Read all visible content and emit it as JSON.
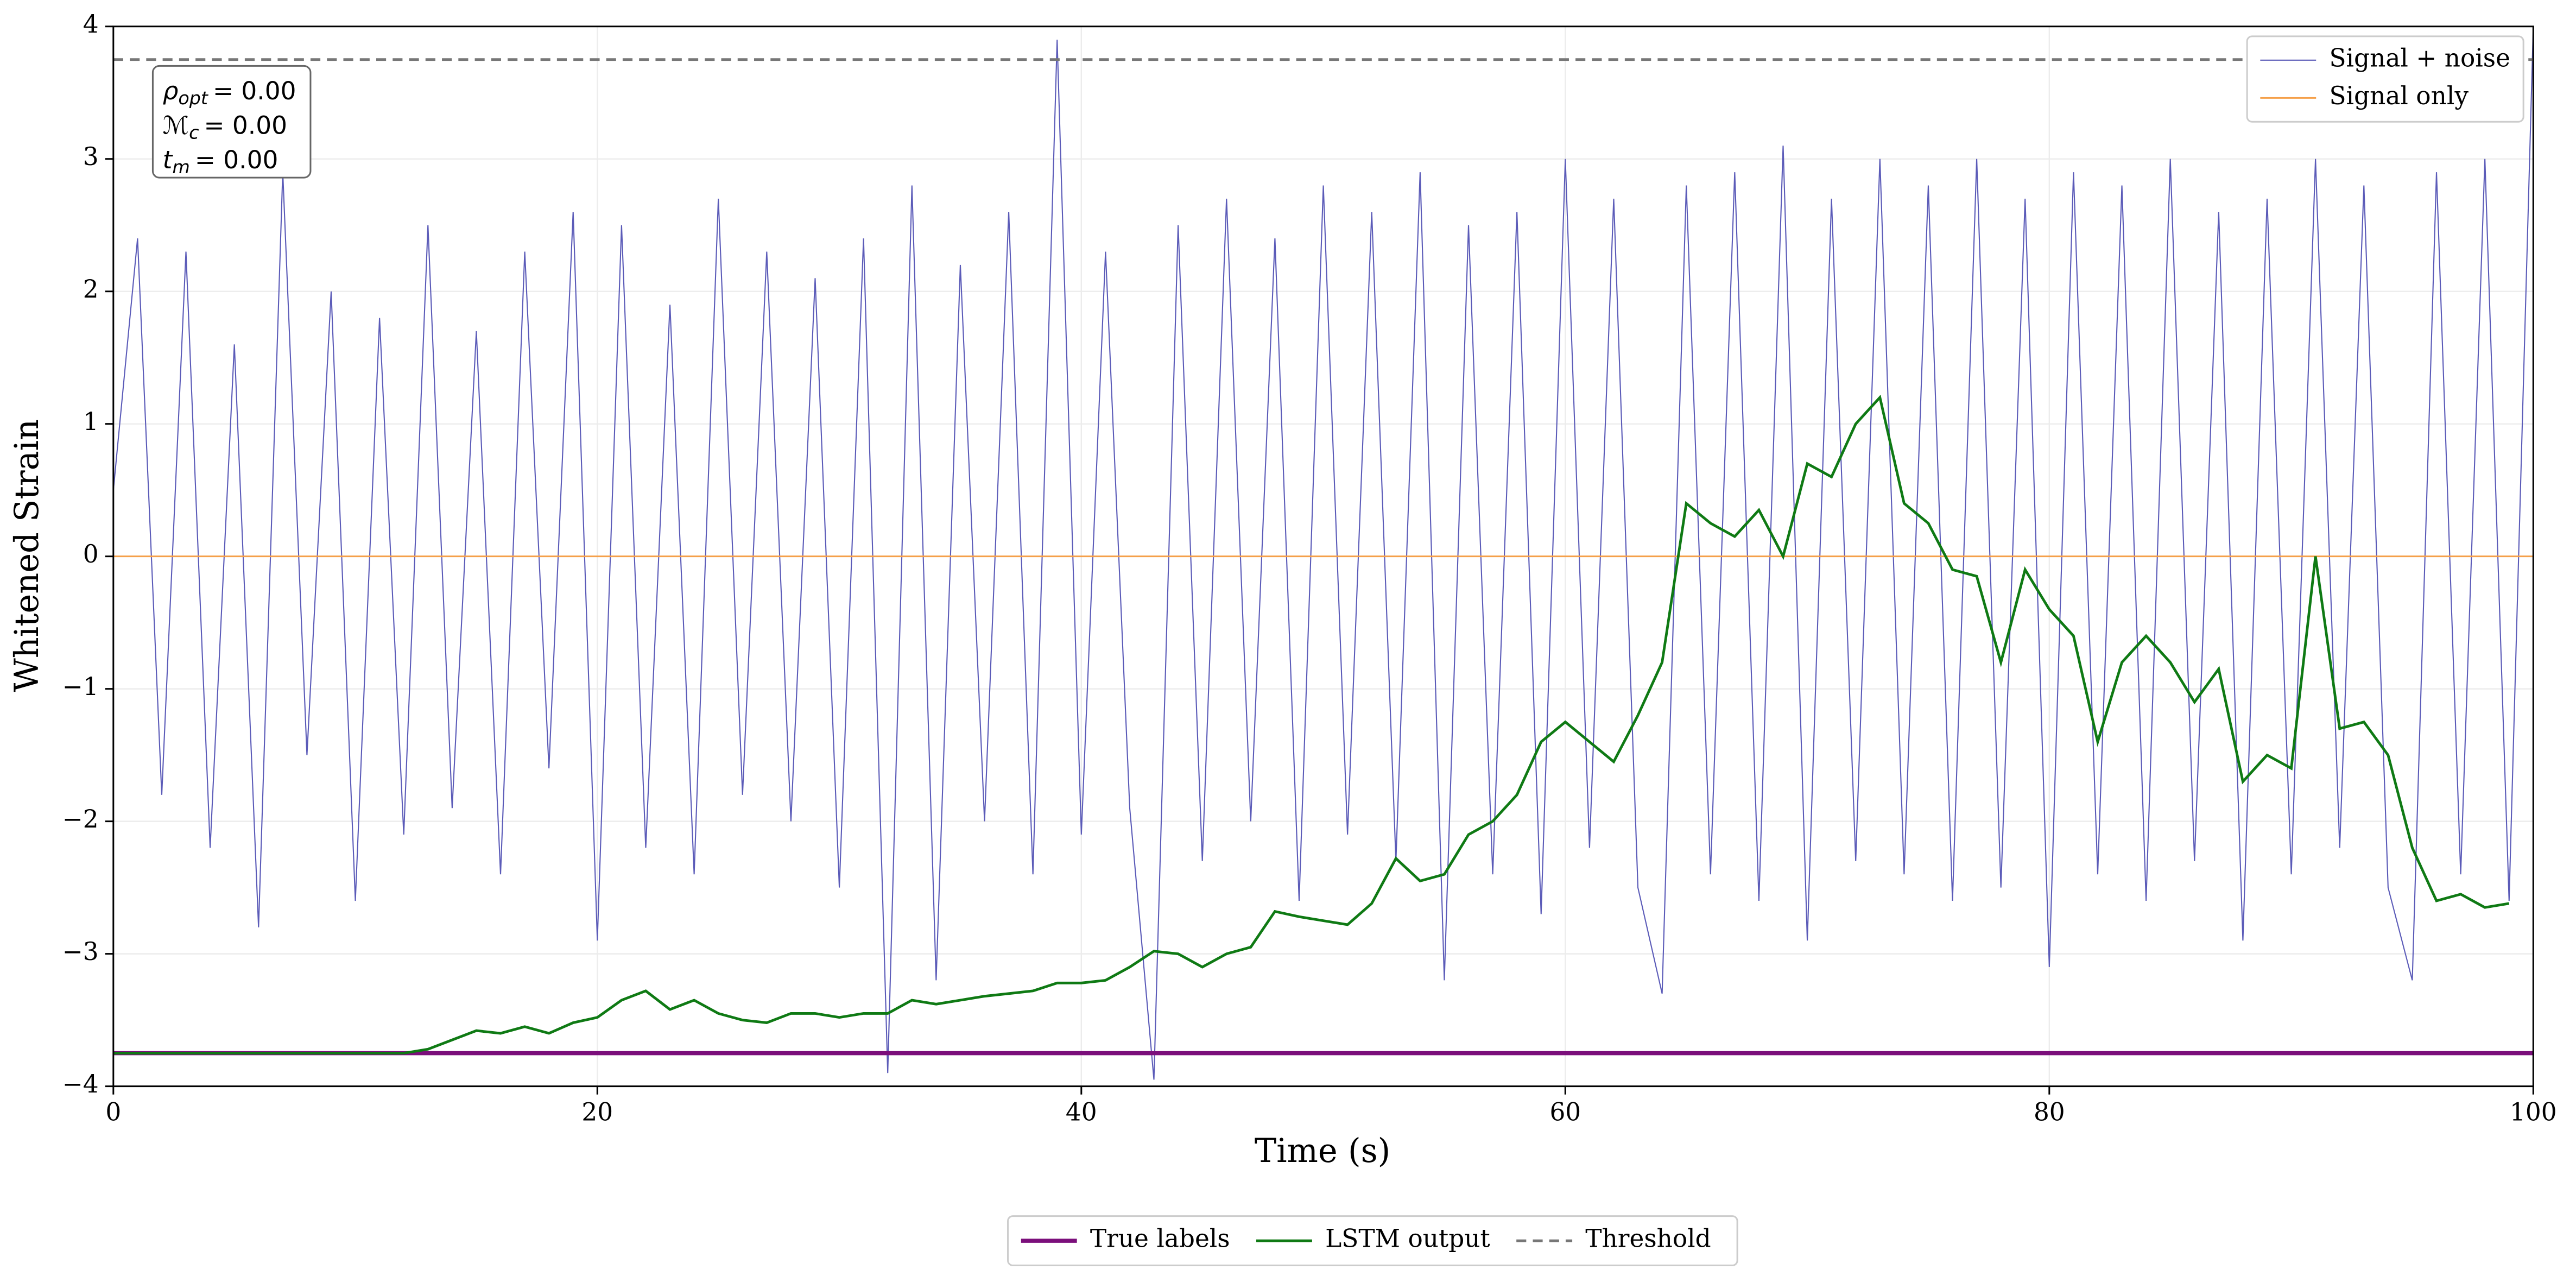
{
  "chart_data": {
    "type": "line",
    "xlabel": "Time (s)",
    "ylabel": "Whitened Strain",
    "xlim": [
      0,
      100
    ],
    "ylim": [
      -4,
      4
    ],
    "xticks": [
      0,
      20,
      40,
      60,
      80,
      100
    ],
    "yticks": [
      {
        "value": -4,
        "label": "−4"
      },
      {
        "value": -3,
        "label": "−3"
      },
      {
        "value": -2,
        "label": "−2"
      },
      {
        "value": -1,
        "label": "−1"
      },
      0,
      1,
      2,
      3,
      4
    ],
    "grid": true,
    "annotation": [
      {
        "symbol": "ρ",
        "sub": "opt",
        "text": "= 0.00"
      },
      {
        "symbol": "ℳ",
        "sub": "c",
        "text": "= 0.00"
      },
      {
        "symbol": "t",
        "sub": "m",
        "text": "= 0.00"
      }
    ],
    "series": [
      {
        "name": "Signal + noise",
        "color": "#5b5bb8",
        "style": "solid",
        "width": 0.7,
        "legend": "upper right",
        "x": [
          0,
          1,
          2,
          3,
          4,
          5,
          6,
          7,
          8,
          9,
          10,
          11,
          12,
          13,
          14,
          15,
          16,
          17,
          18,
          19,
          20,
          21,
          22,
          23,
          24,
          25,
          26,
          27,
          28,
          29,
          30,
          31,
          32,
          33,
          34,
          35,
          36,
          37,
          38,
          39,
          40,
          41,
          42,
          43,
          44,
          45,
          46,
          47,
          48,
          49,
          50,
          51,
          52,
          53,
          54,
          55,
          56,
          57,
          58,
          59,
          60,
          61,
          62,
          63,
          64,
          65,
          66,
          67,
          68,
          69,
          70,
          71,
          72,
          73,
          74,
          75,
          76,
          77,
          78,
          79,
          80,
          81,
          82,
          83,
          84,
          85,
          86,
          87,
          88,
          89,
          90,
          91,
          92,
          93,
          94,
          95,
          96,
          97,
          98,
          99,
          100
        ],
        "values": [
          0.5,
          2.4,
          -1.8,
          2.3,
          -2.2,
          1.6,
          -2.8,
          2.9,
          -1.5,
          2.0,
          -2.6,
          1.8,
          -2.1,
          2.5,
          -1.9,
          1.7,
          -2.4,
          2.3,
          -1.6,
          2.6,
          -2.9,
          2.5,
          -2.2,
          1.9,
          -2.4,
          2.7,
          -1.8,
          2.3,
          -2.0,
          2.1,
          -2.5,
          2.4,
          -3.9,
          2.8,
          -3.2,
          2.2,
          -2.0,
          2.6,
          -2.4,
          3.9,
          -2.1,
          2.3,
          -1.9,
          -3.95,
          2.5,
          -2.3,
          2.7,
          -2.0,
          2.4,
          -2.6,
          2.8,
          -2.1,
          2.6,
          -2.3,
          2.9,
          -3.2,
          2.5,
          -2.4,
          2.6,
          -2.7,
          3.0,
          -2.2,
          2.7,
          -2.5,
          -3.3,
          2.8,
          -2.4,
          2.9,
          -2.6,
          3.1,
          -2.9,
          2.7,
          -2.3,
          3.0,
          -2.4,
          2.8,
          -2.6,
          3.0,
          -2.5,
          2.7,
          -3.1,
          2.9,
          -2.4,
          2.8,
          -2.6,
          3.0,
          -2.3,
          2.6,
          -2.9,
          2.7,
          -2.4,
          3.0,
          -2.2,
          2.8,
          -2.5,
          -3.2,
          2.9,
          -2.4,
          3.0,
          -2.6,
          4.0
        ]
      },
      {
        "name": "Signal only",
        "color": "#f5a04a",
        "style": "solid",
        "width": 1,
        "legend": "upper right",
        "x": [
          0,
          100
        ],
        "values": [
          0,
          0
        ]
      },
      {
        "name": "True labels",
        "color": "#7b0f7b",
        "style": "solid",
        "width": 2.5,
        "legend": "lower center",
        "x": [
          0,
          100
        ],
        "values": [
          -3.75,
          -3.75
        ]
      },
      {
        "name": "LSTM output",
        "color": "#0f7a14",
        "style": "solid",
        "width": 1.6,
        "legend": "lower center",
        "x": [
          0,
          1,
          2,
          3,
          4,
          5,
          6,
          7,
          8,
          9,
          10,
          11,
          12,
          13,
          14,
          15,
          16,
          17,
          18,
          19,
          20,
          21,
          22,
          23,
          24,
          25,
          26,
          27,
          28,
          29,
          30,
          31,
          32,
          33,
          34,
          35,
          36,
          37,
          38,
          39,
          40,
          41,
          42,
          43,
          44,
          45,
          46,
          47,
          48,
          49,
          50,
          51,
          52,
          53,
          54,
          55,
          56,
          57,
          58,
          59,
          60,
          61,
          62,
          63,
          64,
          65,
          66,
          67,
          68,
          69,
          70,
          71,
          72,
          73,
          74,
          75,
          76,
          77,
          78,
          79,
          80,
          81,
          82,
          83,
          84,
          85,
          86,
          87,
          88,
          89,
          90,
          91,
          92,
          93,
          94,
          95,
          96,
          97,
          98,
          99
        ],
        "values": [
          -3.75,
          -3.75,
          -3.75,
          -3.75,
          -3.75,
          -3.75,
          -3.75,
          -3.75,
          -3.75,
          -3.75,
          -3.75,
          -3.75,
          -3.75,
          -3.72,
          -3.65,
          -3.58,
          -3.6,
          -3.55,
          -3.6,
          -3.52,
          -3.48,
          -3.35,
          -3.28,
          -3.42,
          -3.35,
          -3.45,
          -3.5,
          -3.52,
          -3.45,
          -3.45,
          -3.48,
          -3.45,
          -3.45,
          -3.35,
          -3.38,
          -3.35,
          -3.32,
          -3.3,
          -3.28,
          -3.22,
          -3.22,
          -3.2,
          -3.1,
          -2.98,
          -3.0,
          -3.1,
          -3.0,
          -2.95,
          -2.68,
          -2.72,
          -2.75,
          -2.78,
          -2.62,
          -2.28,
          -2.45,
          -2.4,
          -2.1,
          -2.0,
          -1.8,
          -1.4,
          -1.25,
          -1.4,
          -1.55,
          -1.2,
          -0.8,
          0.4,
          0.25,
          0.15,
          0.35,
          0.0,
          0.7,
          0.6,
          1.0,
          1.2,
          0.4,
          0.25,
          -0.1,
          -0.15,
          -0.8,
          -0.1,
          -0.4,
          -0.6,
          -1.4,
          -0.8,
          -0.6,
          -0.8,
          -1.1,
          -0.85,
          -1.7,
          -1.5,
          -1.6,
          0.0,
          -1.3,
          -1.25,
          -1.5,
          -2.2,
          -2.6,
          -2.55,
          -2.65,
          -2.62
        ]
      },
      {
        "name": "Threshold",
        "color": "#777777",
        "style": "dashed",
        "width": 1.6,
        "legend": "lower center",
        "x": [
          0,
          100
        ],
        "values": [
          3.75,
          3.75
        ]
      }
    ]
  }
}
